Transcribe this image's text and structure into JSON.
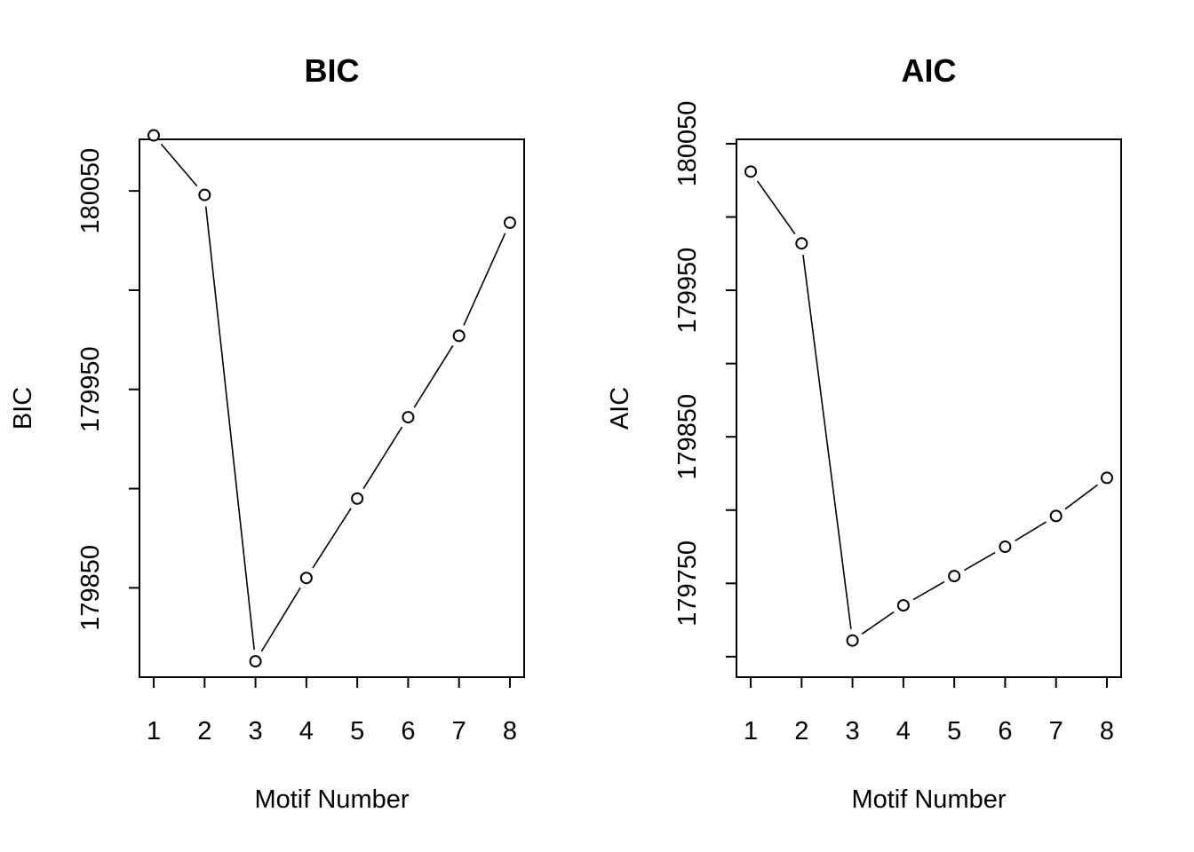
{
  "chart_data": [
    {
      "type": "line",
      "title": "BIC",
      "xlabel": "Motif Number",
      "ylabel": "BIC",
      "x": [
        1,
        2,
        3,
        4,
        5,
        6,
        7,
        8
      ],
      "values": [
        180078,
        180048,
        179813,
        179855,
        179895,
        179936,
        179977,
        180034
      ],
      "xlim": [
        0.72,
        8.28
      ],
      "ylim": [
        179805,
        180076
      ],
      "xticks": [
        1,
        2,
        3,
        4,
        5,
        6,
        7,
        8
      ],
      "yticks": [
        179850,
        179900,
        179950,
        180000,
        180050
      ],
      "yticklabels": [
        "179850",
        "",
        "179950",
        "",
        "180050"
      ],
      "marker": "open-circle",
      "grid": false
    },
    {
      "type": "line",
      "title": "AIC",
      "xlabel": "Motif Number",
      "ylabel": "AIC",
      "x": [
        1,
        2,
        3,
        4,
        5,
        6,
        7,
        8
      ],
      "values": [
        180031,
        179982,
        179711,
        179735,
        179755,
        179775,
        179796,
        179822
      ],
      "xlim": [
        0.72,
        8.28
      ],
      "ylim": [
        179686,
        180053
      ],
      "xticks": [
        1,
        2,
        3,
        4,
        5,
        6,
        7,
        8
      ],
      "yticks": [
        179700,
        179750,
        179800,
        179850,
        179900,
        179950,
        180000,
        180050
      ],
      "yticklabels": [
        "",
        "179750",
        "",
        "179850",
        "",
        "179950",
        "",
        "180050"
      ],
      "marker": "open-circle",
      "grid": false
    }
  ]
}
